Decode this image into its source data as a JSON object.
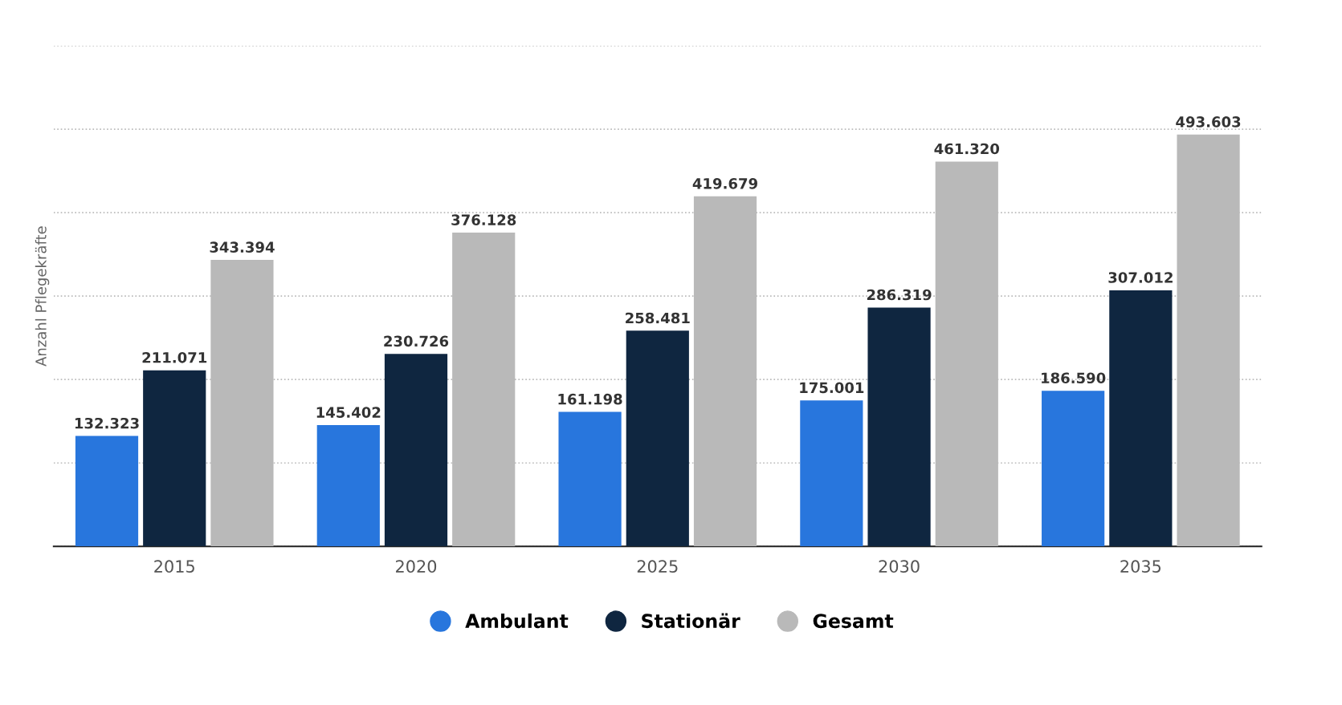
{
  "chart_data": {
    "type": "bar",
    "ylabel": "Anzahl Pflegekräfte",
    "categories": [
      "2015",
      "2020",
      "2025",
      "2030",
      "2035"
    ],
    "series": [
      {
        "name": "Ambulant",
        "color": "#2876dd",
        "values": [
          132323,
          145402,
          161198,
          175001,
          186590
        ],
        "value_labels": [
          "132.323",
          "145.402",
          "161.198",
          "175.001",
          "186.590"
        ]
      },
      {
        "name": "Stationär",
        "color": "#0f2640",
        "values": [
          211071,
          230726,
          258481,
          286319,
          307012
        ],
        "value_labels": [
          "211.071",
          "230.726",
          "258.481",
          "286.319",
          "307.012"
        ]
      },
      {
        "name": "Gesamt",
        "color": "#b9b9b9",
        "values": [
          343394,
          376128,
          419679,
          461320,
          493603
        ],
        "value_labels": [
          "343.394",
          "376.128",
          "419.679",
          "461.320",
          "493.603"
        ]
      }
    ],
    "ylim": [
      0,
      600000
    ],
    "yticks": [
      {
        "value": 0,
        "label": null
      },
      {
        "value": 100000,
        "label": null
      },
      {
        "value": 200000,
        "label": null
      },
      {
        "value": 300000,
        "label": null
      },
      {
        "value": 400000,
        "label": null
      },
      {
        "value": 500000,
        "label": null
      },
      {
        "value": 600000,
        "label": null
      }
    ],
    "tick_labels": "x",
    "grid": "y",
    "legend": "bottom"
  }
}
